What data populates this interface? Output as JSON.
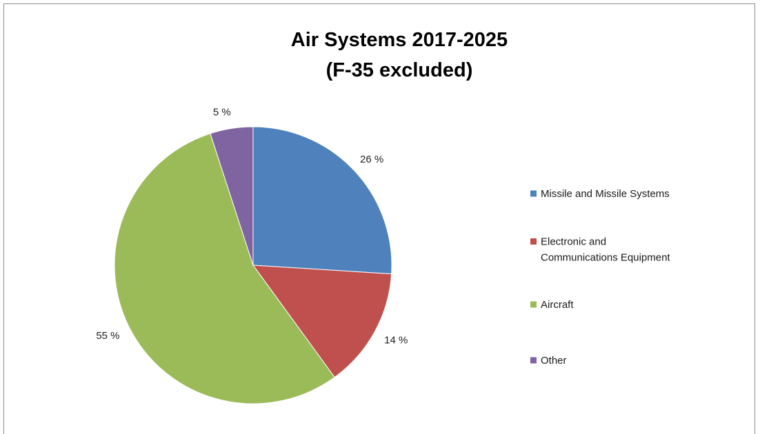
{
  "chart_data": {
    "type": "pie",
    "title_lines": [
      "Air Systems 2017-2025",
      "(F-35 excluded)"
    ],
    "slices": [
      {
        "label_lines": [
          "Missile and Missile Systems"
        ],
        "value": 26,
        "display": "26 %",
        "color": "#4F81BD"
      },
      {
        "label_lines": [
          "Electronic and",
          "Communications Equipment"
        ],
        "value": 14,
        "display": "14 %",
        "color": "#C0504D"
      },
      {
        "label_lines": [
          "Aircraft"
        ],
        "value": 55,
        "display": "55 %",
        "color": "#9BBB59"
      },
      {
        "label_lines": [
          "Other"
        ],
        "value": 5,
        "display": "5 %",
        "color": "#8064A2"
      }
    ],
    "legend_position": "right",
    "start_angle": "12 o'clock, clockwise"
  }
}
